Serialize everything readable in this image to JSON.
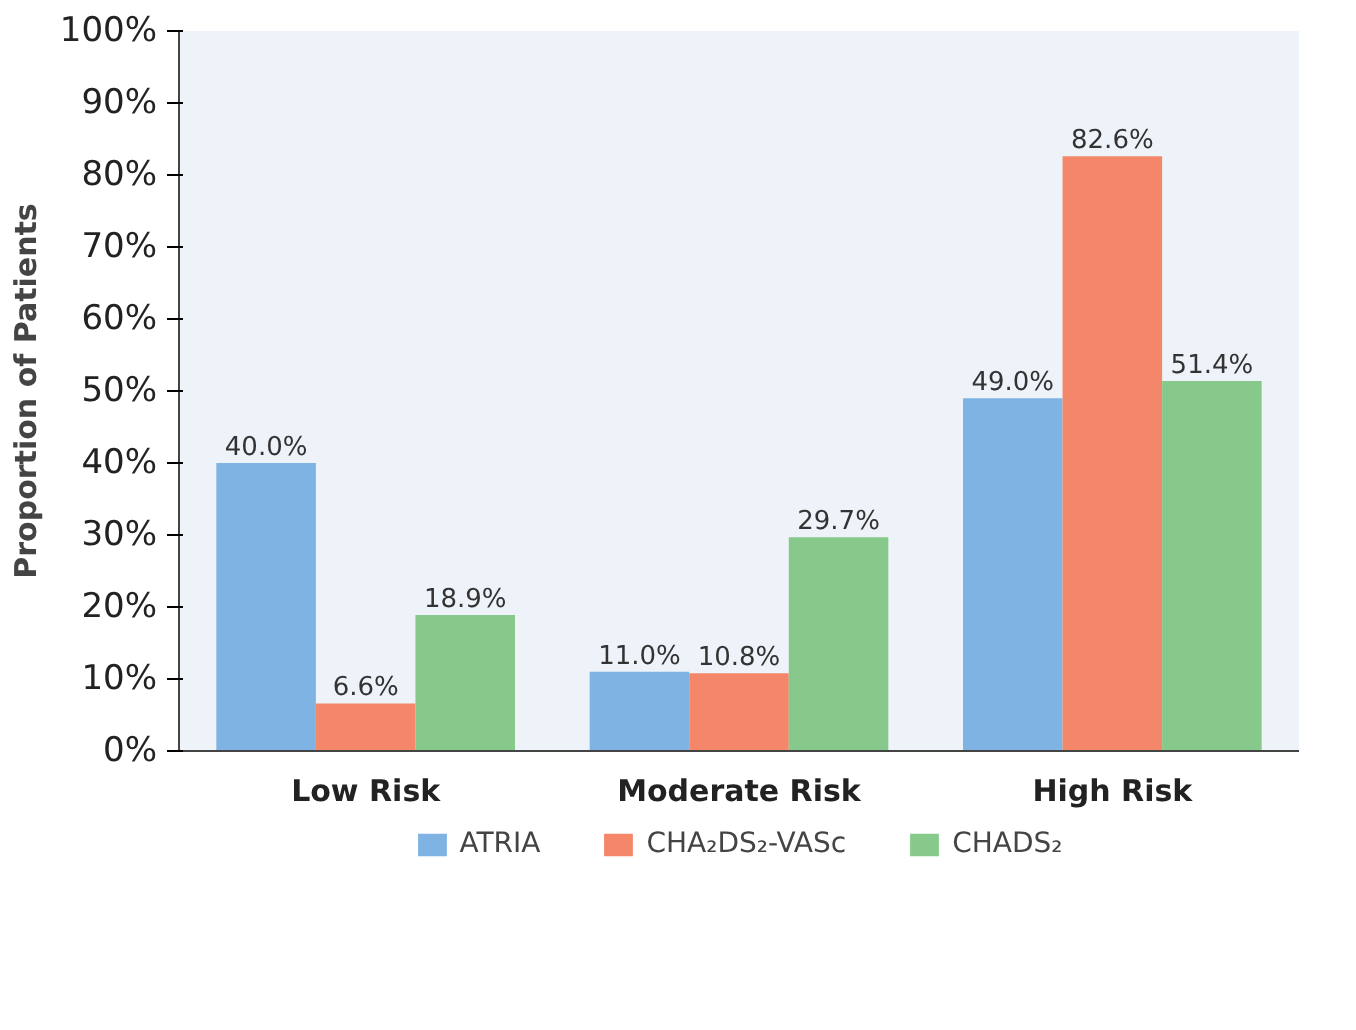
{
  "chart_data": {
    "type": "bar",
    "ylabel": "Proportion of Patients",
    "categories": [
      "Low Risk",
      "Moderate Risk",
      "High Risk"
    ],
    "series": [
      {
        "name": "ATRIA",
        "color": "#7fb3e3",
        "values": [
          40.0,
          11.0,
          49.0
        ],
        "value_labels": [
          "40.0%",
          "11.0%",
          "49.0%"
        ]
      },
      {
        "name": "CHA₂DS₂-VASc",
        "color": "#f4876a",
        "values": [
          6.6,
          10.8,
          82.6
        ],
        "value_labels": [
          "6.6%",
          "10.8%",
          "82.6%"
        ]
      },
      {
        "name": "CHADS₂",
        "color": "#87c98b",
        "values": [
          18.9,
          29.7,
          51.4
        ],
        "value_labels": [
          "18.9%",
          "29.7%",
          "51.4%"
        ]
      }
    ],
    "ylim": [
      0,
      100
    ],
    "yticks": [
      {
        "value": 0,
        "label": "0%"
      },
      {
        "value": 10,
        "label": "10%"
      },
      {
        "value": 20,
        "label": "20%"
      },
      {
        "value": 30,
        "label": "30%"
      },
      {
        "value": 40,
        "label": "40%"
      },
      {
        "value": 50,
        "label": "50%"
      },
      {
        "value": 60,
        "label": "60%"
      },
      {
        "value": 70,
        "label": "70%"
      },
      {
        "value": 80,
        "label": "80%"
      },
      {
        "value": 90,
        "label": "90%"
      },
      {
        "value": 100,
        "label": "100%"
      }
    ],
    "grid": false,
    "legend": "bottom"
  }
}
